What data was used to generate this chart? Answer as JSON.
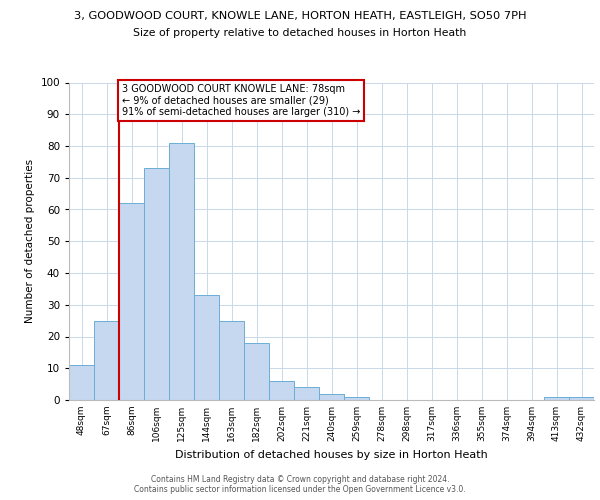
{
  "title_line1": "3, GOODWOOD COURT, KNOWLE LANE, HORTON HEATH, EASTLEIGH, SO50 7PH",
  "title_line2": "Size of property relative to detached houses in Horton Heath",
  "xlabel": "Distribution of detached houses by size in Horton Heath",
  "ylabel": "Number of detached properties",
  "bar_labels": [
    "48sqm",
    "67sqm",
    "86sqm",
    "106sqm",
    "125sqm",
    "144sqm",
    "163sqm",
    "182sqm",
    "202sqm",
    "221sqm",
    "240sqm",
    "259sqm",
    "278sqm",
    "298sqm",
    "317sqm",
    "336sqm",
    "355sqm",
    "374sqm",
    "394sqm",
    "413sqm",
    "432sqm"
  ],
  "bar_values": [
    11,
    25,
    62,
    73,
    81,
    33,
    25,
    18,
    6,
    4,
    2,
    1,
    0,
    0,
    0,
    0,
    0,
    0,
    0,
    1,
    1
  ],
  "bar_color": "#c5d8f0",
  "bar_edge_color": "#6aaed6",
  "vline_color": "#cc0000",
  "vline_x": 1.5,
  "ylim": [
    0,
    100
  ],
  "yticks": [
    0,
    10,
    20,
    30,
    40,
    50,
    60,
    70,
    80,
    90,
    100
  ],
  "annotation_text": "3 GOODWOOD COURT KNOWLE LANE: 78sqm\n← 9% of detached houses are smaller (29)\n91% of semi-detached houses are larger (310) →",
  "annotation_box_color": "#ffffff",
  "annotation_box_edge": "#cc0000",
  "footer_text": "Contains HM Land Registry data © Crown copyright and database right 2024.\nContains public sector information licensed under the Open Government Licence v3.0.",
  "background_color": "#ffffff",
  "grid_color": "#c8d8e8"
}
